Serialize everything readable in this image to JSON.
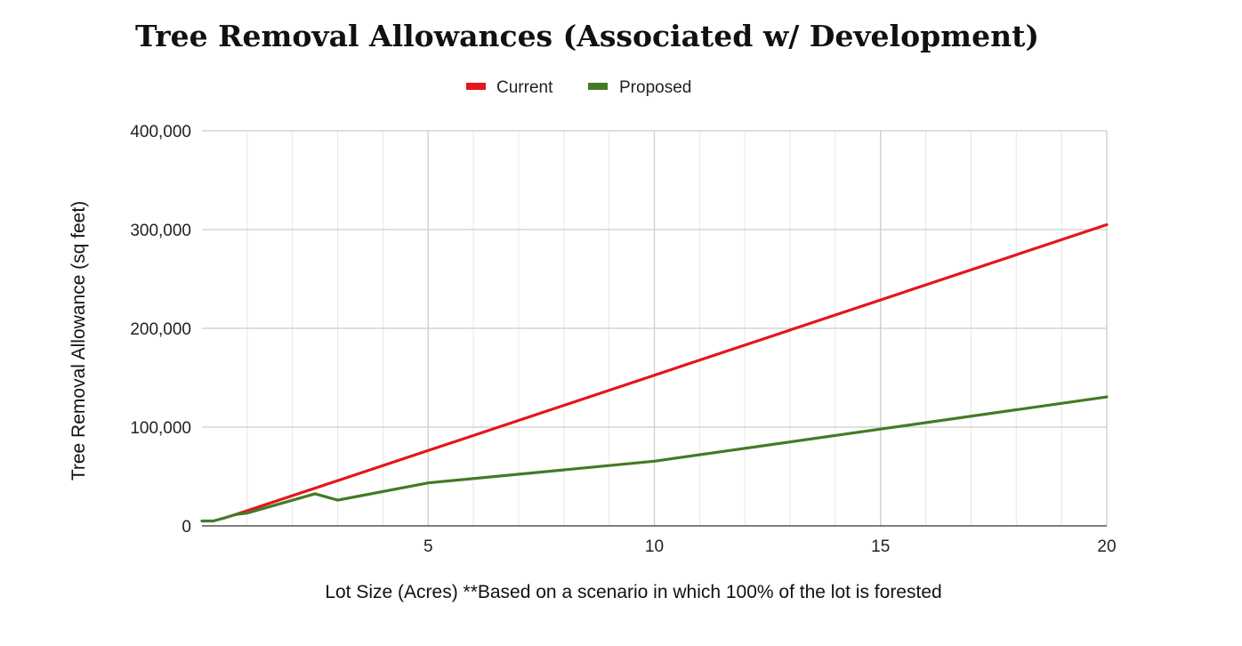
{
  "chart_data": {
    "type": "line",
    "title": "Tree Removal Allowances (Associated w/ Development)",
    "xlabel": "Lot Size (Acres)  **Based on a scenario in which 100% of the lot is forested",
    "ylabel": "Tree Removal Allowance (sq feet)",
    "xlim": [
      0,
      20
    ],
    "ylim": [
      0,
      400000
    ],
    "x_ticks": [
      5,
      10,
      15,
      20
    ],
    "x_tick_labels": [
      "5",
      "10",
      "15",
      "20"
    ],
    "y_ticks": [
      0,
      100000,
      200000,
      300000,
      400000
    ],
    "y_tick_labels": [
      "0",
      "100,000",
      "200,000",
      "300,000",
      "400,000"
    ],
    "grid": true,
    "legend_position": "top-center",
    "series": [
      {
        "name": "Current",
        "color": "#e3171d",
        "points": [
          [
            0.75,
            11500
          ],
          [
            20,
            305000
          ]
        ]
      },
      {
        "name": "Proposed",
        "color": "#437a27",
        "points": [
          [
            0,
            5000
          ],
          [
            0.25,
            5000
          ],
          [
            0.5,
            8000
          ],
          [
            0.75,
            11500
          ],
          [
            1,
            13000
          ],
          [
            2.5,
            32500
          ],
          [
            3,
            26000
          ],
          [
            5,
            43500
          ],
          [
            10,
            65500
          ],
          [
            15,
            98000
          ],
          [
            20,
            130500
          ]
        ]
      }
    ]
  }
}
